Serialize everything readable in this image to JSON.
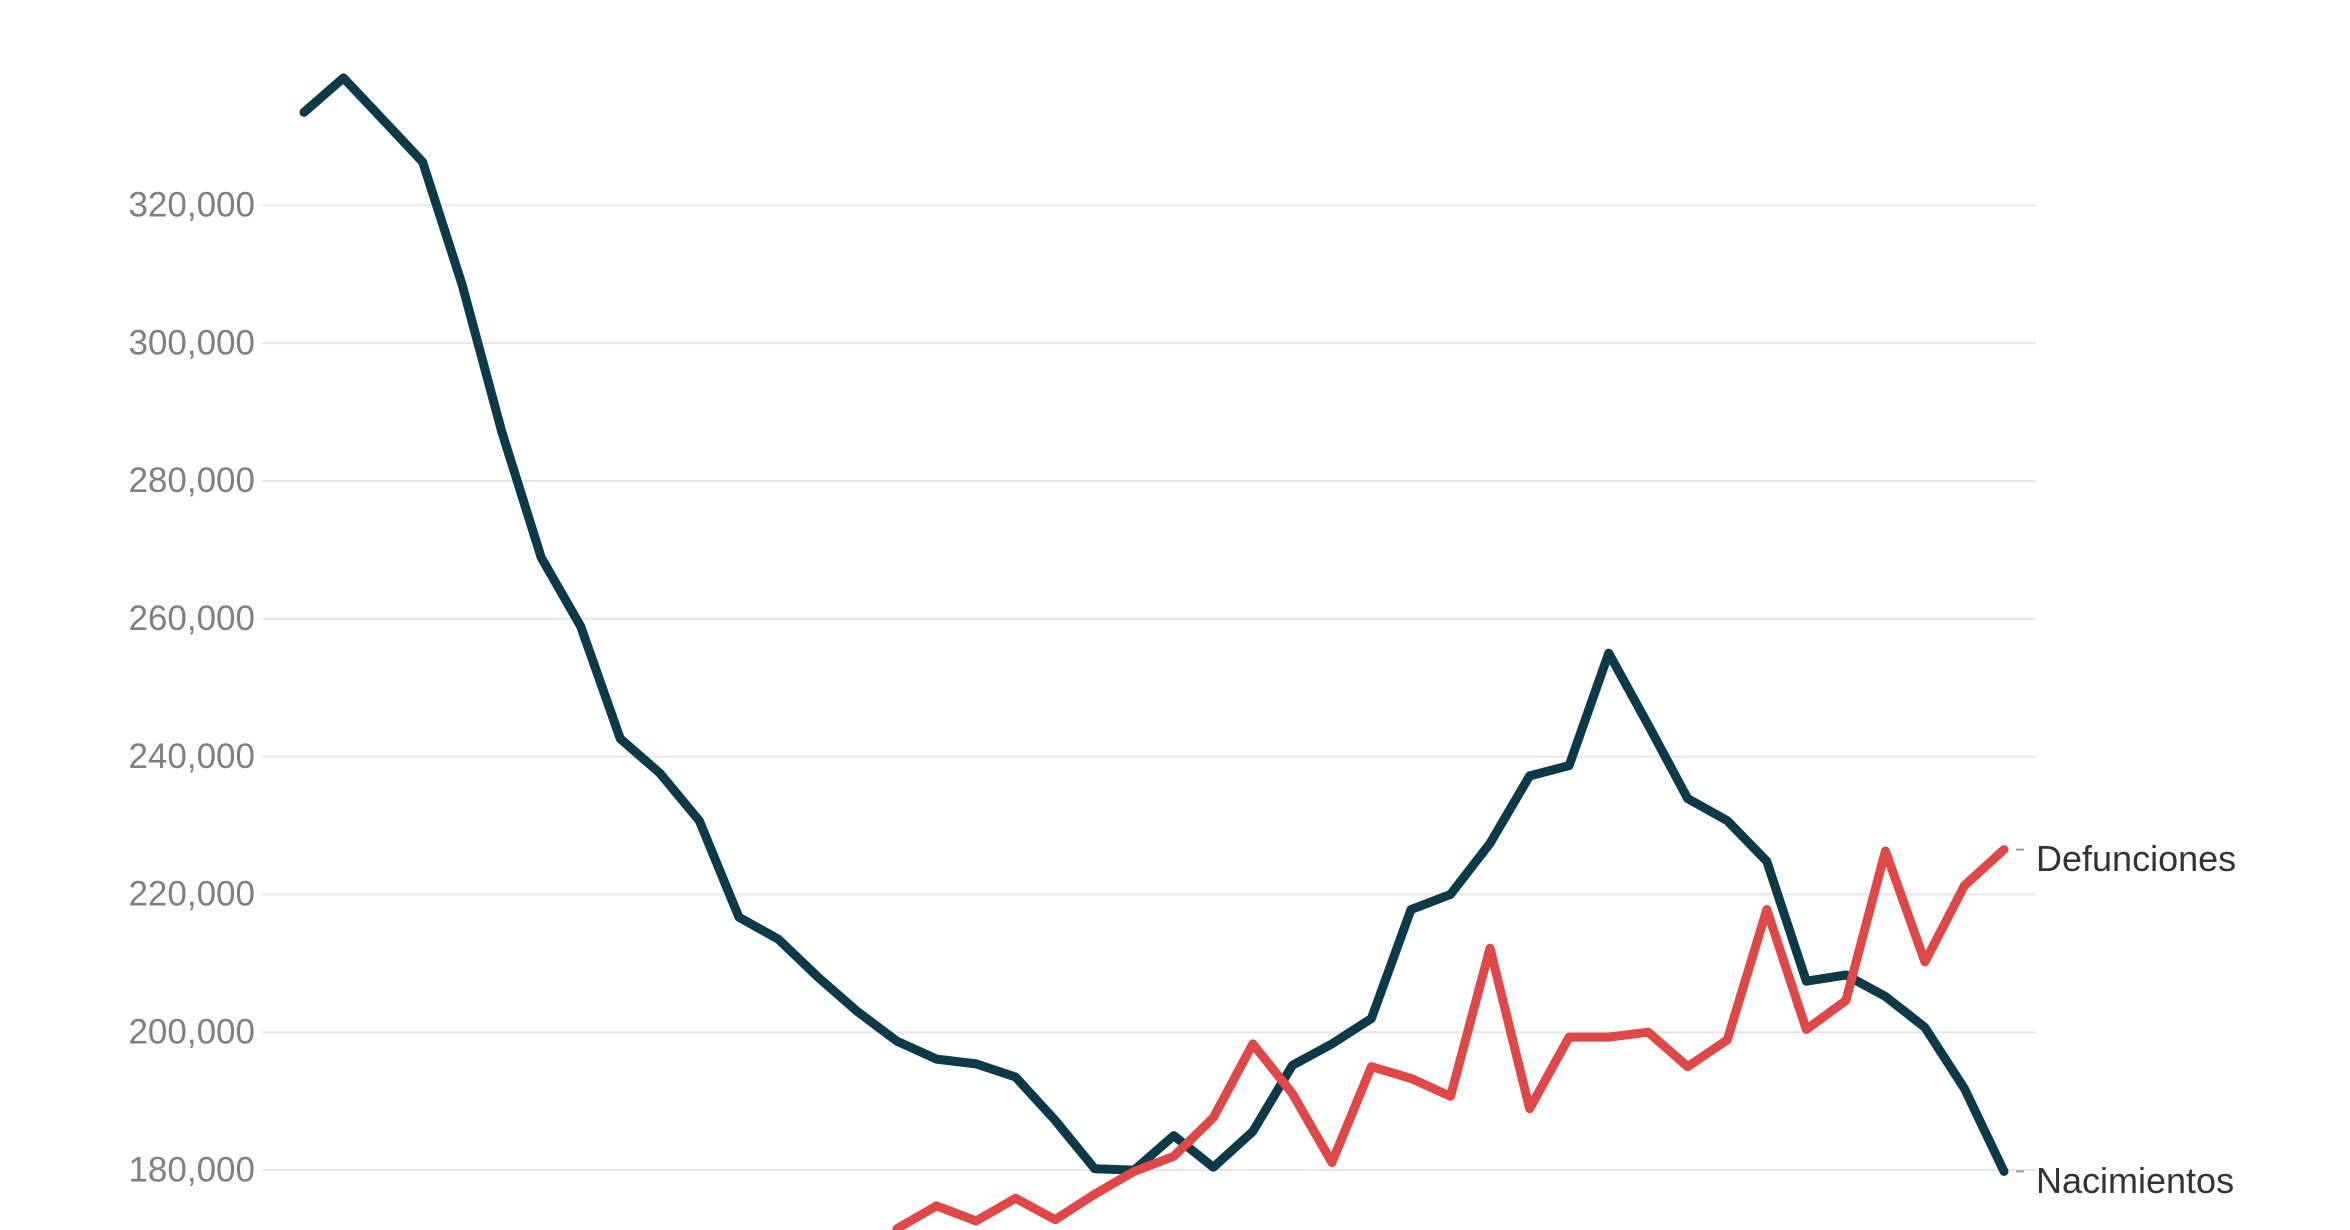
{
  "chart_data": {
    "type": "line",
    "categories": [
      null,
      null,
      null,
      null,
      null,
      null,
      null,
      null,
      null,
      null,
      null,
      null,
      null,
      null,
      null,
      null,
      null,
      null,
      null,
      null,
      null,
      null,
      null,
      null,
      null,
      null,
      null,
      null,
      null,
      null,
      null,
      null,
      null,
      null,
      null,
      null,
      null,
      null,
      null,
      null,
      null,
      null,
      null,
      null
    ],
    "series": [
      {
        "name": "Nacimientos",
        "color": "#0d3a48",
        "values": [
          333500,
          338500,
          332400,
          326300,
          308500,
          287200,
          268900,
          258900,
          242600,
          237600,
          230700,
          216700,
          213500,
          208000,
          203000,
          198700,
          196100,
          195400,
          193500,
          187200,
          180200,
          180000,
          185000,
          180400,
          185600,
          195200,
          198300,
          202000,
          217800,
          220000,
          227400,
          237200,
          238700,
          255000,
          244600,
          233900,
          230700,
          224800,
          207400,
          208300,
          205200,
          200700,
          191800,
          179800
        ]
      },
      {
        "name": "Defunciones",
        "color": "#e04848",
        "values": [
          null,
          null,
          null,
          null,
          null,
          null,
          null,
          null,
          null,
          null,
          null,
          null,
          null,
          null,
          null,
          171500,
          174800,
          172600,
          175900,
          172800,
          176500,
          179800,
          182000,
          187600,
          198300,
          191100,
          181100,
          195000,
          193300,
          190700,
          212200,
          188900,
          199300,
          199300,
          200000,
          195000,
          198900,
          217800,
          200400,
          204600,
          226300,
          210200,
          221300,
          226500
        ]
      }
    ],
    "ylim": [
      171300,
      349800
    ],
    "yticks": [
      {
        "value": 180000,
        "label": "180,000"
      },
      {
        "value": 200000,
        "label": "200,000"
      },
      {
        "value": 220000,
        "label": "220,000"
      },
      {
        "value": 240000,
        "label": "240,000"
      },
      {
        "value": 260000,
        "label": "260,000"
      },
      {
        "value": 280000,
        "label": "280,000"
      },
      {
        "value": 300000,
        "label": "300,000"
      },
      {
        "value": 320000,
        "label": "320,000"
      }
    ],
    "grid": true
  }
}
